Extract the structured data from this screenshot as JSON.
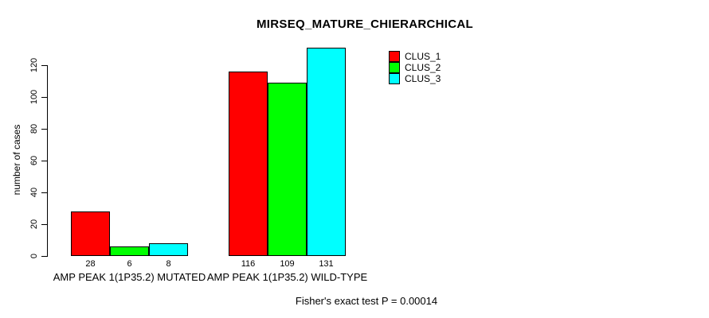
{
  "chart_data": {
    "type": "bar",
    "title": "MIRSEQ_MATURE_CHIERARCHICAL",
    "xlabel": "",
    "ylabel": "number of cases",
    "ylim": [
      0,
      120
    ],
    "yticks": [
      0,
      20,
      40,
      60,
      80,
      100,
      120
    ],
    "categories": [
      "AMP PEAK 1(1P35.2) MUTATED",
      "AMP PEAK 1(1P35.2) WILD-TYPE"
    ],
    "series": [
      {
        "name": "CLUS_1",
        "color": "#ff0000",
        "values": [
          28,
          116
        ]
      },
      {
        "name": "CLUS_2",
        "color": "#00ff00",
        "values": [
          6,
          109
        ]
      },
      {
        "name": "CLUS_3",
        "color": "#00ffff",
        "values": [
          8,
          131
        ]
      }
    ],
    "value_labels": [
      [
        28,
        116
      ],
      [
        6,
        109
      ],
      [
        8,
        131
      ]
    ],
    "legend_position": "top-right",
    "grid": false,
    "annotation": "Fisher's exact test P = 0.00014"
  }
}
